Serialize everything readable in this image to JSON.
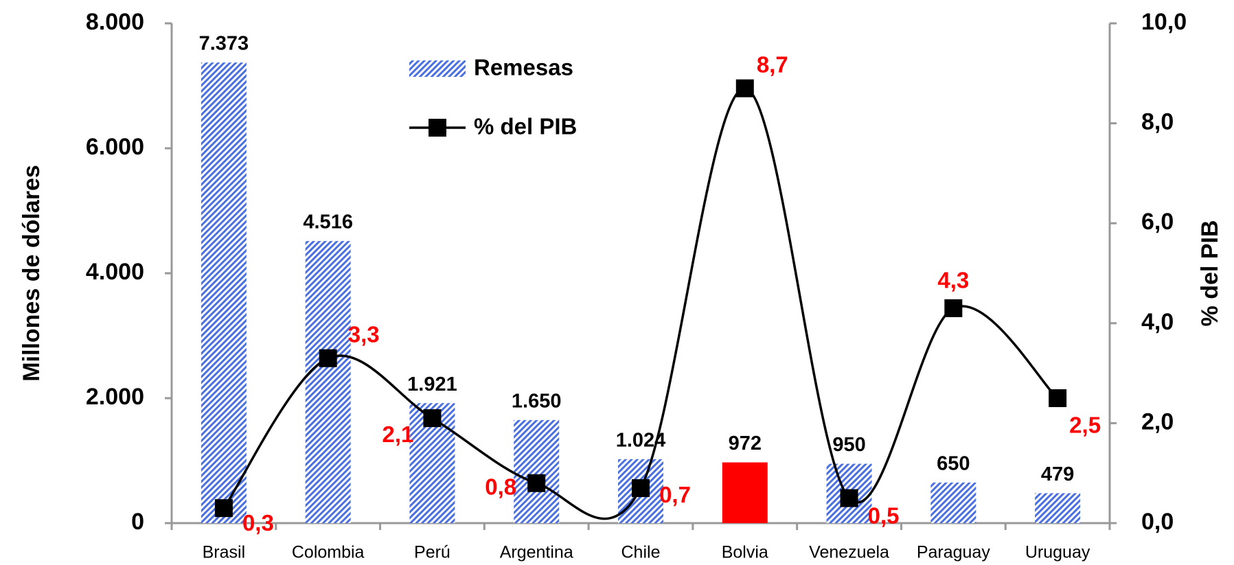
{
  "chart_data": {
    "type": "bar_line",
    "y_label": "Millones de dólares",
    "y2_label": "% del PIB",
    "categories": [
      "Brasil",
      "Colombia",
      "Perú",
      "Argentina",
      "Chile",
      "Bolvia",
      "Venezuela",
      "Paraguay",
      "Uruguay"
    ],
    "series": [
      {
        "name": "Remesas",
        "type": "bar",
        "color": "#4a6fe0",
        "fills": [
          "hatch",
          "hatch",
          "hatch",
          "hatch",
          "hatch",
          "solid",
          "hatch",
          "hatch",
          "hatch"
        ],
        "colors": [
          "#4a6fe0",
          "#4a6fe0",
          "#4a6fe0",
          "#4a6fe0",
          "#4a6fe0",
          "#ff0000",
          "#4a6fe0",
          "#4a6fe0",
          "#4a6fe0"
        ],
        "values": [
          7373,
          4516,
          1921,
          1650,
          1024,
          972,
          950,
          650,
          479
        ],
        "value_labels": [
          "7.373",
          "4.516",
          "1.921",
          "1.650",
          "1.024",
          "972",
          "950",
          "650",
          "479"
        ],
        "label_color": "#000000"
      },
      {
        "name": "% del PIB",
        "type": "line",
        "axis": "y2",
        "color": "#000000",
        "smooth": true,
        "marker": "square",
        "values": [
          0.3,
          3.3,
          2.1,
          0.8,
          0.7,
          8.7,
          0.5,
          4.3,
          2.5
        ],
        "value_labels": [
          "0,3",
          "3,3",
          "2,1",
          "0,8",
          "0,7",
          "8,7",
          "0,5",
          "4,3",
          "2,5"
        ],
        "label_color": "#ff0000"
      }
    ],
    "ylim": [
      0,
      8000
    ],
    "yticks": [
      {
        "value": 0,
        "label": "0"
      },
      {
        "value": 2000,
        "label": "2.000"
      },
      {
        "value": 4000,
        "label": "4.000"
      },
      {
        "value": 6000,
        "label": "6.000"
      },
      {
        "value": 8000,
        "label": "8.000"
      }
    ],
    "y2lim": [
      0,
      10
    ],
    "y2ticks": [
      {
        "value": 0,
        "label": "0,0"
      },
      {
        "value": 2,
        "label": "2,0"
      },
      {
        "value": 4,
        "label": "4,0"
      },
      {
        "value": 6,
        "label": "6,0"
      },
      {
        "value": 8,
        "label": "8,0"
      },
      {
        "value": 10,
        "label": "10,0"
      }
    ],
    "grid": false,
    "legend": "top-center"
  }
}
